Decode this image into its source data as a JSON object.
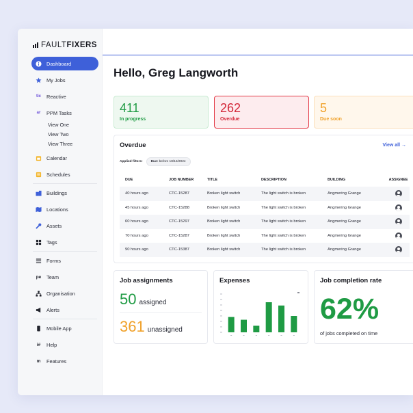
{
  "brand": {
    "part1": "FAULT",
    "part2": "FIXERS"
  },
  "nav": {
    "dashboard": "Dashboard",
    "my_jobs": "My Jobs",
    "reactive": "Reactive",
    "ppm_tasks": "PPM Tasks",
    "view_one": "View One",
    "view_two": "View Two",
    "view_three": "View Three",
    "calendar": "Calendar",
    "schedules": "Schedules",
    "buildings": "Buildings",
    "locations": "Locations",
    "assets": "Assets",
    "tags": "Tags",
    "forms": "Forms",
    "team": "Team",
    "organisation": "Organisation",
    "alerts": "Alerts",
    "mobile_app": "Mobile App",
    "help": "Help",
    "features": "Features"
  },
  "greeting": "Hello, Greg Langworth",
  "stats": {
    "in_progress": {
      "value": "411",
      "label": "In progress"
    },
    "overdue": {
      "value": "262",
      "label": "Overdue"
    },
    "due_soon": {
      "value": "5",
      "label": "Due soon"
    }
  },
  "overdue_table": {
    "title": "Overdue",
    "view_all": "View all →",
    "filters_label": "Applied filters:",
    "filter_key": "Due:",
    "filter_value": "before 18/12/2024",
    "headers": [
      "DUE",
      "JOB NUMBER",
      "TITLE",
      "DESCRIPTION",
      "BUILDING",
      "ASSIGNEE"
    ],
    "rows": [
      [
        "40 hours ago",
        "CTC-15287",
        "Broken light switch",
        "The light switch is broken",
        "Angmering Grange"
      ],
      [
        "45 hours ago",
        "CTC-15288",
        "Broken light switch",
        "The light switch is broken",
        "Angmering Grange"
      ],
      [
        "60 hours ago",
        "CTC-15297",
        "Broken light switch",
        "The light switch is broken",
        "Angmering Grange"
      ],
      [
        "70 hours ago",
        "CTC-15287",
        "Broken light switch",
        "The light switch is broken",
        "Angmering Grange"
      ],
      [
        "90 hours ago",
        "CTC-15387",
        "Broken light switch",
        "The light switch is broken",
        "Angmering Grange"
      ]
    ]
  },
  "job_assignments": {
    "title": "Job assignments",
    "assigned_value": "50",
    "assigned_label": "assigned",
    "unassigned_value": "361",
    "unassigned_label": "unassigned"
  },
  "expenses": {
    "title": "Expenses"
  },
  "completion": {
    "title": "Job completion rate",
    "value": "62%",
    "label": "of jobs completed on time"
  },
  "chart_data": {
    "type": "bar",
    "title": "Expenses",
    "categories": [
      "",
      "",
      "",
      "",
      "",
      ""
    ],
    "values": [
      28,
      23,
      12,
      55,
      49,
      30
    ],
    "ylim": [
      0,
      70
    ],
    "grid": false,
    "color": "#1f9b44"
  },
  "colors": {
    "accent": "#3e60d9",
    "green": "#1f9b44",
    "red": "#d32536",
    "orange": "#f0a12a"
  }
}
